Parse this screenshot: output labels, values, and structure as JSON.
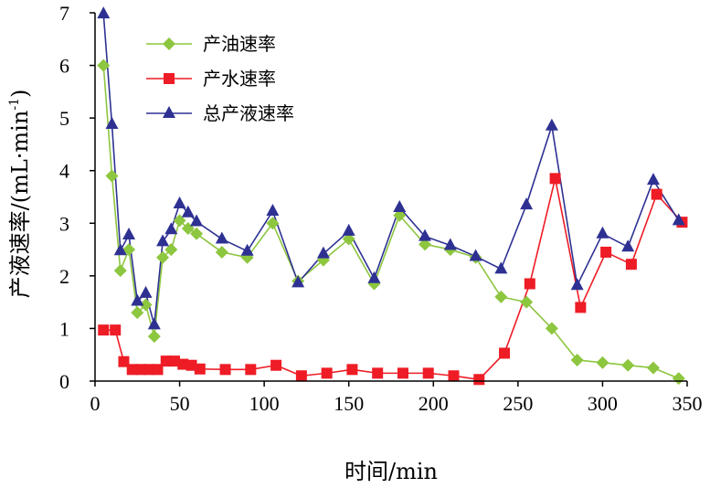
{
  "chart_data": {
    "type": "line",
    "title": "",
    "xlabel": "时间/min",
    "ylabel": "产液速率/(mL·min",
    "ylabel_sup": "-1",
    "ylabel_close": ")",
    "xlim": [
      0,
      350
    ],
    "ylim": [
      0,
      7
    ],
    "xticks": [
      0,
      50,
      100,
      150,
      200,
      250,
      300,
      350
    ],
    "yticks": [
      0,
      1,
      2,
      3,
      4,
      5,
      6,
      7
    ],
    "grid": false,
    "legend_position": "top-left",
    "series": [
      {
        "name": "产油速率",
        "color": "#8DC63F",
        "marker": "diamond",
        "x": [
          5,
          10,
          15,
          20,
          25,
          30,
          35,
          40,
          45,
          50,
          55,
          60,
          75,
          90,
          105,
          120,
          135,
          150,
          165,
          180,
          195,
          210,
          225,
          240,
          255,
          270,
          285,
          300,
          315,
          330,
          345
        ],
        "y": [
          6.0,
          3.9,
          2.1,
          2.5,
          1.3,
          1.45,
          0.85,
          2.35,
          2.5,
          3.05,
          2.9,
          2.8,
          2.45,
          2.35,
          3.0,
          1.9,
          2.3,
          2.7,
          1.85,
          3.15,
          2.6,
          2.5,
          2.35,
          1.6,
          1.5,
          1.0,
          0.4,
          0.35,
          0.3,
          0.25,
          0.05
        ]
      },
      {
        "name": "产水速率",
        "color": "#EE1C25",
        "marker": "square",
        "x": [
          5,
          12,
          17,
          22,
          27,
          32,
          37,
          42,
          47,
          52,
          57,
          62,
          77,
          92,
          107,
          122,
          137,
          152,
          167,
          182,
          197,
          212,
          227,
          242,
          257,
          272,
          287,
          302,
          317,
          332,
          347
        ],
        "y": [
          0.97,
          0.97,
          0.37,
          0.22,
          0.22,
          0.22,
          0.22,
          0.38,
          0.38,
          0.32,
          0.3,
          0.23,
          0.22,
          0.22,
          0.3,
          0.1,
          0.15,
          0.22,
          0.15,
          0.15,
          0.15,
          0.1,
          0.03,
          0.53,
          1.85,
          3.85,
          1.4,
          2.45,
          2.22,
          3.55,
          3.02
        ]
      },
      {
        "name": "总产液速率",
        "color": "#2E3192",
        "marker": "triangle",
        "x": [
          5,
          10,
          15,
          20,
          25,
          30,
          35,
          40,
          45,
          50,
          55,
          60,
          75,
          90,
          105,
          120,
          135,
          150,
          165,
          180,
          195,
          210,
          225,
          240,
          255,
          270,
          285,
          300,
          315,
          330,
          345
        ],
        "y": [
          6.98,
          4.88,
          2.48,
          2.78,
          1.52,
          1.67,
          1.07,
          2.65,
          2.88,
          3.37,
          3.2,
          3.03,
          2.7,
          2.47,
          3.23,
          1.87,
          2.42,
          2.85,
          1.95,
          3.3,
          2.75,
          2.58,
          2.37,
          2.13,
          3.35,
          4.85,
          1.82,
          2.8,
          2.55,
          3.82,
          3.05
        ]
      }
    ]
  }
}
